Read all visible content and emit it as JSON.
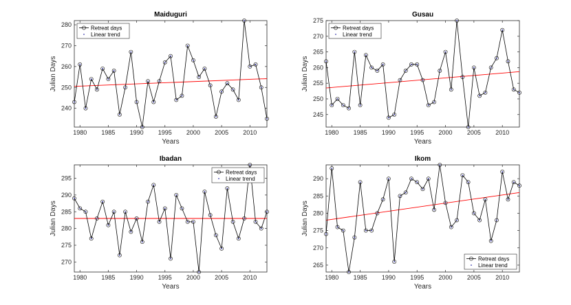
{
  "colors": {
    "line": "#000000",
    "marker": "#3333aa",
    "trend": "#ff0000",
    "axis": "#262626"
  },
  "chart_data": [
    {
      "type": "line",
      "title": "Maiduguri",
      "xlabel": "Years",
      "ylabel": "Julian Days",
      "xlim": [
        1979,
        2013
      ],
      "ylim": [
        231,
        282
      ],
      "xticks": [
        1980,
        1985,
        1990,
        1995,
        2000,
        2005,
        2010
      ],
      "yticks": [
        240,
        250,
        260,
        270,
        280
      ],
      "legend": {
        "location": "top-left",
        "entries": [
          "Retreat days",
          "Linear trend"
        ]
      },
      "x": [
        1979,
        1980,
        1981,
        1982,
        1983,
        1984,
        1985,
        1986,
        1987,
        1988,
        1989,
        1990,
        1991,
        1992,
        1993,
        1994,
        1995,
        1996,
        1997,
        1998,
        1999,
        2000,
        2001,
        2002,
        2003,
        2004,
        2005,
        2006,
        2007,
        2008,
        2009,
        2010,
        2011,
        2012,
        2013
      ],
      "series": [
        {
          "name": "Retreat days",
          "values": [
            243,
            261,
            240,
            254,
            249,
            259,
            254,
            258,
            237,
            250,
            267,
            243,
            231,
            253,
            243,
            253,
            262,
            265,
            244,
            246,
            270,
            263,
            255,
            259,
            251,
            236,
            248,
            252,
            249,
            244,
            282,
            260,
            261,
            250,
            235
          ]
        },
        {
          "name": "Linear trend",
          "start": 250.5,
          "end": 254.2
        }
      ]
    },
    {
      "type": "line",
      "title": "Gusau",
      "xlabel": "Years",
      "ylabel": "Julian Days",
      "xlim": [
        1979,
        2013
      ],
      "ylim": [
        241,
        275
      ],
      "xticks": [
        1980,
        1985,
        1990,
        1995,
        2000,
        2005,
        2010
      ],
      "yticks": [
        245,
        250,
        255,
        260,
        265,
        270,
        275
      ],
      "legend": {
        "location": "top-left",
        "entries": [
          "Retreat days",
          "Linear trend"
        ]
      },
      "x": [
        1979,
        1980,
        1981,
        1982,
        1983,
        1984,
        1985,
        1986,
        1987,
        1988,
        1989,
        1990,
        1991,
        1992,
        1993,
        1994,
        1995,
        1996,
        1997,
        1998,
        1999,
        2000,
        2001,
        2002,
        2003,
        2004,
        2005,
        2006,
        2007,
        2008,
        2009,
        2010,
        2011,
        2012,
        2013
      ],
      "series": [
        {
          "name": "Retreat days",
          "values": [
            262,
            248,
            250,
            248,
            247,
            265,
            248,
            264,
            260,
            259,
            261,
            244,
            245,
            256,
            259,
            261,
            261,
            256,
            248,
            249,
            259,
            265,
            253,
            275,
            257,
            241,
            260,
            251,
            252,
            260,
            263,
            272,
            262,
            253,
            252
          ]
        },
        {
          "name": "Linear trend",
          "start": 253.5,
          "end": 258.7
        }
      ]
    },
    {
      "type": "line",
      "title": "Ibadan",
      "xlabel": "Years",
      "ylabel": "Julian Days",
      "xlim": [
        1979,
        2013
      ],
      "ylim": [
        267,
        299
      ],
      "xticks": [
        1980,
        1985,
        1990,
        1995,
        2000,
        2005,
        2010
      ],
      "yticks": [
        270,
        275,
        280,
        285,
        290,
        295
      ],
      "legend": {
        "location": "top-right",
        "entries": [
          "Retreat days",
          "Linear trend"
        ]
      },
      "x": [
        1979,
        1980,
        1981,
        1982,
        1983,
        1984,
        1985,
        1986,
        1987,
        1988,
        1989,
        1990,
        1991,
        1992,
        1993,
        1994,
        1995,
        1996,
        1997,
        1998,
        1999,
        2000,
        2001,
        2002,
        2003,
        2004,
        2005,
        2006,
        2007,
        2008,
        2009,
        2010,
        2011,
        2012,
        2013
      ],
      "series": [
        {
          "name": "Retreat days",
          "values": [
            289,
            286,
            285,
            277,
            283,
            288,
            281,
            285,
            272,
            285,
            279,
            283,
            276,
            288,
            293,
            282,
            286,
            271,
            290,
            286,
            282,
            282,
            267,
            291,
            284,
            278,
            274,
            292,
            282,
            277,
            283,
            299,
            282,
            280,
            285
          ]
        },
        {
          "name": "Linear trend",
          "start": 283.0,
          "end": 283.0
        }
      ]
    },
    {
      "type": "line",
      "title": "Ikom",
      "xlabel": "Years",
      "ylabel": "Julian Days",
      "xlim": [
        1979,
        2013
      ],
      "ylim": [
        263,
        294
      ],
      "xticks": [
        1980,
        1985,
        1990,
        1995,
        2000,
        2005,
        2010
      ],
      "yticks": [
        265,
        270,
        275,
        280,
        285,
        290
      ],
      "legend": {
        "location": "bottom-right",
        "entries": [
          "Retreat days",
          "Linear trend"
        ]
      },
      "x": [
        1979,
        1980,
        1981,
        1982,
        1983,
        1984,
        1985,
        1986,
        1987,
        1988,
        1989,
        1990,
        1991,
        1992,
        1993,
        1994,
        1995,
        1996,
        1997,
        1998,
        1999,
        2000,
        2001,
        2002,
        2003,
        2004,
        2005,
        2006,
        2007,
        2008,
        2009,
        2010,
        2011,
        2012,
        2013
      ],
      "series": [
        {
          "name": "Retreat days",
          "values": [
            274,
            293,
            276,
            275,
            263,
            273,
            289,
            275,
            275,
            280,
            284,
            290,
            266,
            285,
            286,
            290,
            289,
            287,
            290,
            281,
            294,
            283,
            276,
            278,
            291,
            289,
            280,
            278,
            284,
            272,
            278,
            292,
            284,
            289,
            288
          ]
        },
        {
          "name": "Linear trend",
          "start": 278.0,
          "end": 286.0
        }
      ]
    }
  ]
}
